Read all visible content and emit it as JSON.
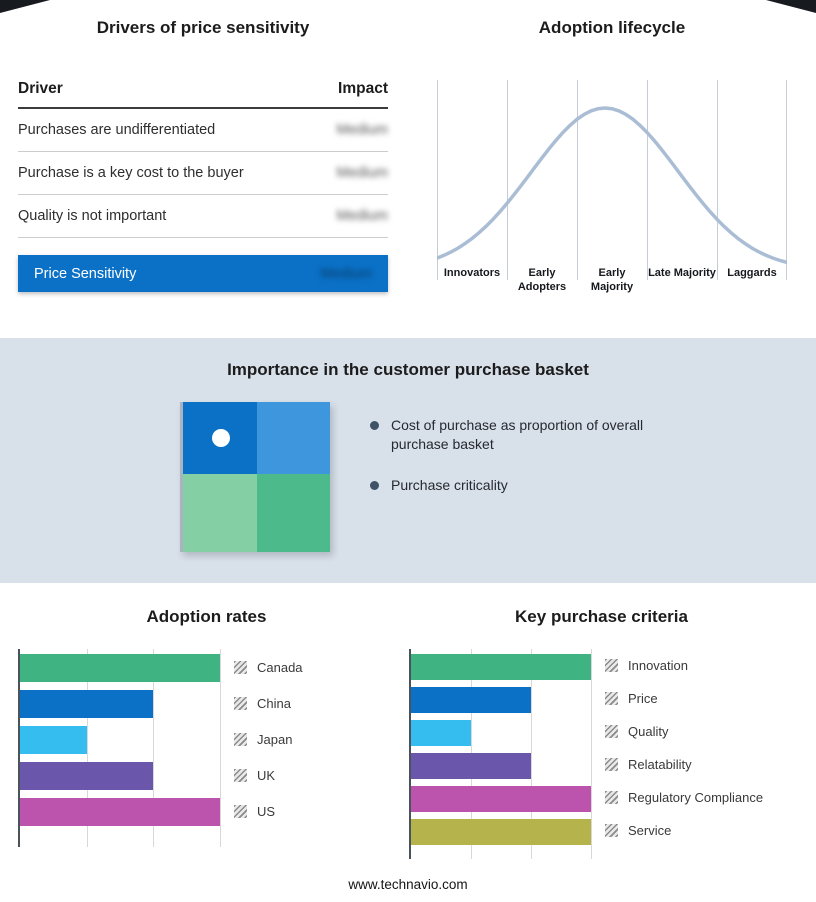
{
  "page": {
    "footer": "www.technavio.com"
  },
  "colors": {
    "accent_blue": "#0a71c7",
    "mid_section_bg": "#d8e0ea",
    "curve": "#aabdd4"
  },
  "sections": {
    "drivers": {
      "title": "Drivers of price sensitivity",
      "headers": [
        "Driver",
        "Impact"
      ],
      "rows": [
        {
          "driver": "Purchases are undifferentiated",
          "impact": "Medium"
        },
        {
          "driver": "Purchase is a key cost to the buyer",
          "impact": "Medium"
        },
        {
          "driver": "Quality is not important",
          "impact": "Medium"
        }
      ],
      "summary": {
        "label": "Price Sensitivity",
        "impact": "Medium"
      }
    },
    "basket": {
      "title": "Importance in the customer purchase basket",
      "bullets": [
        "Cost of purchase as proportion of overall purchase basket",
        "Purchase criticality"
      ],
      "quadrant": {
        "colors": [
          "#0a71c7",
          "#3e97dd",
          "#85cfa4",
          "#4cba8a"
        ],
        "marker": "white-dot-top-left"
      }
    }
  },
  "chart_data": [
    {
      "type": "line",
      "subtype": "bell-curve",
      "title": "Adoption lifecycle",
      "stages": [
        "Innovators",
        "Early Adopters",
        "Early Majority",
        "Late Majority",
        "Laggards"
      ],
      "gaussian": {
        "mean": 0.48,
        "sigma": 0.21
      },
      "color": "#aabdd4",
      "grid": "vertical-stage-boundaries",
      "axis_labels_shown": false
    },
    {
      "type": "bar",
      "orientation": "horizontal",
      "title": "Adoption rates",
      "categories": [
        "Canada",
        "China",
        "Japan",
        "UK",
        "US"
      ],
      "values": [
        3,
        2,
        1,
        2,
        3
      ],
      "xlim": [
        0,
        3
      ],
      "colors": [
        "#3fb381",
        "#0a71c7",
        "#35bdf0",
        "#6a57ab",
        "#bc53ac"
      ],
      "legend_position": "right",
      "value_note": "relative bar lengths; no numeric axis labels shown"
    },
    {
      "type": "bar",
      "orientation": "horizontal",
      "title": "Key purchase criteria",
      "categories": [
        "Innovation",
        "Price",
        "Quality",
        "Relatability",
        "Regulatory Compliance",
        "Service"
      ],
      "values": [
        3,
        2,
        1,
        2,
        3,
        3
      ],
      "xlim": [
        0,
        3
      ],
      "colors": [
        "#3fb381",
        "#0a71c7",
        "#35bdf0",
        "#6a57ab",
        "#bc53ac",
        "#b5b34b"
      ],
      "legend_position": "right",
      "value_note": "relative bar lengths; no numeric axis labels shown"
    }
  ]
}
